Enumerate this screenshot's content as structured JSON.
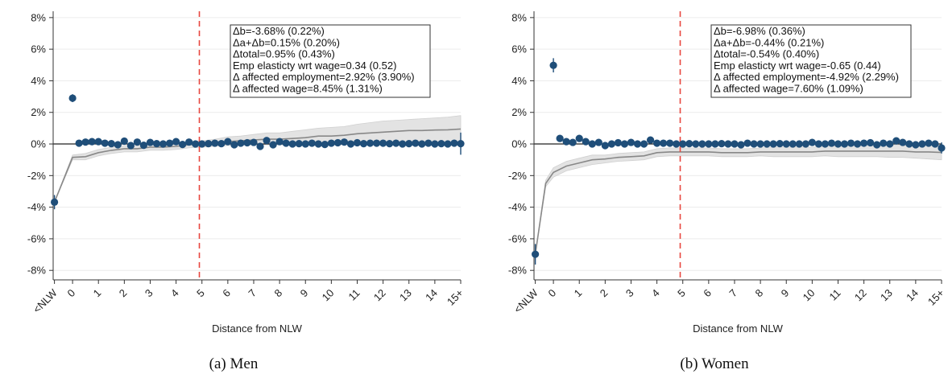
{
  "chart_data": [
    {
      "type": "scatter",
      "panel": "men",
      "caption": "(a) Men",
      "xlabel": "Distance from NLW",
      "x_tick_labels": [
        "<NLW",
        "0",
        "1",
        "2",
        "3",
        "4",
        "5",
        "6",
        "7",
        "8",
        "9",
        "10",
        "11",
        "12",
        "13",
        "14",
        "15+"
      ],
      "y_tick_labels": [
        "8%",
        "6%",
        "4%",
        "2%",
        "0%",
        "-2%",
        "-4%",
        "-6%",
        "-8%"
      ],
      "ylim": [
        -8.6,
        8.4
      ],
      "y_ticks": [
        8,
        6,
        4,
        2,
        0,
        -2,
        -4,
        -6,
        -8
      ],
      "vline_x": 4.9,
      "grid": true,
      "stats_box": [
        "Δb=-3.68% (0.22%)",
        "Δa+Δb=0.15% (0.20%)",
        "Δtotal=0.95% (0.43%)",
        "Emp elasticty wrt wage=0.34 (0.52)",
        "Δ affected employment=2.92% (3.90%)",
        "Δ affected wage=8.45% (1.31%)"
      ],
      "points": {
        "x": [
          -0.7,
          0,
          0.25,
          0.5,
          0.75,
          1.0,
          1.25,
          1.5,
          1.75,
          2.0,
          2.25,
          2.5,
          2.75,
          3.0,
          3.25,
          3.5,
          3.75,
          4.0,
          4.25,
          4.5,
          4.75,
          5.0,
          5.25,
          5.5,
          5.75,
          6.0,
          6.25,
          6.5,
          6.75,
          7.0,
          7.25,
          7.5,
          7.75,
          8.0,
          8.25,
          8.5,
          8.75,
          9.0,
          9.25,
          9.5,
          9.75,
          10.0,
          10.25,
          10.5,
          10.75,
          11.0,
          11.25,
          11.5,
          11.75,
          12.0,
          12.25,
          12.5,
          12.75,
          13.0,
          13.25,
          13.5,
          13.75,
          14.0,
          14.25,
          14.5,
          14.75,
          15.0
        ],
        "y": [
          -3.68,
          2.9,
          0.05,
          0.12,
          0.15,
          0.15,
          0.05,
          0.02,
          -0.05,
          0.18,
          -0.1,
          0.12,
          -0.08,
          0.1,
          0.02,
          0.0,
          0.05,
          0.15,
          -0.03,
          0.12,
          0.0,
          0.0,
          0.02,
          0.05,
          0.02,
          0.15,
          -0.05,
          0.05,
          0.08,
          0.1,
          -0.15,
          0.22,
          -0.05,
          0.15,
          0.05,
          0.0,
          0.02,
          0.0,
          0.05,
          0.0,
          -0.03,
          0.05,
          0.08,
          0.12,
          0.0,
          0.08,
          0.02,
          0.05,
          0.05,
          0.05,
          0.02,
          0.05,
          0.0,
          0.02,
          0.05,
          0.0,
          0.05,
          0.0,
          0.02,
          0.0,
          0.05,
          0.02
        ],
        "se": [
          0.45,
          0.25,
          0.08,
          0.08,
          0.08,
          0.08,
          0.08,
          0.08,
          0.08,
          0.08,
          0.08,
          0.08,
          0.08,
          0.08,
          0.08,
          0.08,
          0.08,
          0.08,
          0.08,
          0.08,
          0.08,
          0.08,
          0.08,
          0.08,
          0.08,
          0.08,
          0.08,
          0.08,
          0.08,
          0.08,
          0.08,
          0.08,
          0.08,
          0.08,
          0.08,
          0.08,
          0.08,
          0.08,
          0.08,
          0.08,
          0.08,
          0.08,
          0.08,
          0.08,
          0.08,
          0.08,
          0.08,
          0.08,
          0.08,
          0.08,
          0.08,
          0.08,
          0.08,
          0.08,
          0.08,
          0.08,
          0.08,
          0.08,
          0.08,
          0.08,
          0.08,
          0.7
        ]
      },
      "cumulative_line": {
        "x": [
          -0.7,
          0,
          0.5,
          1,
          1.5,
          2,
          2.5,
          3,
          3.5,
          4,
          4.5,
          5,
          5.5,
          6,
          6.5,
          7,
          7.5,
          8,
          8.5,
          9,
          9.5,
          10,
          10.5,
          11,
          11.5,
          12,
          12.5,
          13,
          13.5,
          14,
          14.5,
          15
        ],
        "y": [
          -3.68,
          -0.85,
          -0.8,
          -0.55,
          -0.4,
          -0.3,
          -0.3,
          -0.2,
          -0.2,
          -0.15,
          -0.05,
          0.0,
          0.05,
          0.15,
          0.2,
          0.25,
          0.3,
          0.3,
          0.35,
          0.4,
          0.5,
          0.5,
          0.55,
          0.65,
          0.7,
          0.75,
          0.8,
          0.85,
          0.85,
          0.88,
          0.9,
          0.95
        ],
        "lo": [
          -3.68,
          -1.0,
          -1.0,
          -0.75,
          -0.6,
          -0.5,
          -0.5,
          -0.4,
          -0.4,
          -0.35,
          -0.25,
          -0.2,
          -0.15,
          -0.1,
          -0.05,
          -0.05,
          -0.05,
          -0.05,
          -0.05,
          -0.05,
          -0.05,
          -0.05,
          -0.05,
          0.0,
          0.0,
          0.0,
          0.0,
          0.05,
          0.05,
          0.05,
          0.05,
          0.1
        ],
        "hi": [
          -3.68,
          -0.7,
          -0.6,
          -0.35,
          -0.2,
          -0.1,
          -0.1,
          0.0,
          0.0,
          0.05,
          0.15,
          0.2,
          0.3,
          0.45,
          0.5,
          0.6,
          0.7,
          0.7,
          0.8,
          0.9,
          1.0,
          1.05,
          1.1,
          1.25,
          1.35,
          1.45,
          1.5,
          1.55,
          1.6,
          1.65,
          1.7,
          1.8
        ]
      },
      "colors": {
        "points": "#1f4e79",
        "line": "#888888",
        "band": "#e3e3e3",
        "vline": "#e8473f"
      }
    },
    {
      "type": "scatter",
      "panel": "women",
      "caption": "(b) Women",
      "xlabel": "Distance from NLW",
      "x_tick_labels": [
        "<NLW",
        "0",
        "1",
        "2",
        "3",
        "4",
        "5",
        "6",
        "7",
        "8",
        "9",
        "10",
        "11",
        "12",
        "13",
        "14",
        "15+"
      ],
      "y_tick_labels": [
        "8%",
        "6%",
        "4%",
        "2%",
        "0%",
        "-2%",
        "-4%",
        "-6%",
        "-8%"
      ],
      "ylim": [
        -8.6,
        8.4
      ],
      "y_ticks": [
        8,
        6,
        4,
        2,
        0,
        -2,
        -4,
        -6,
        -8
      ],
      "vline_x": 4.9,
      "grid": true,
      "stats_box": [
        "Δb=-6.98% (0.36%)",
        "Δa+Δb=-0.44% (0.21%)",
        "Δtotal=-0.54% (0.40%)",
        "Emp elasticty wrt wage=-0.65 (0.44)",
        "Δ affected employment=-4.92% (2.29%)",
        "Δ affected wage=7.60% (1.09%)"
      ],
      "points": {
        "x": [
          -0.7,
          0,
          0.25,
          0.5,
          0.75,
          1.0,
          1.25,
          1.5,
          1.75,
          2.0,
          2.25,
          2.5,
          2.75,
          3.0,
          3.25,
          3.5,
          3.75,
          4.0,
          4.25,
          4.5,
          4.75,
          5.0,
          5.25,
          5.5,
          5.75,
          6.0,
          6.25,
          6.5,
          6.75,
          7.0,
          7.25,
          7.5,
          7.75,
          8.0,
          8.25,
          8.5,
          8.75,
          9.0,
          9.25,
          9.5,
          9.75,
          10.0,
          10.25,
          10.5,
          10.75,
          11.0,
          11.25,
          11.5,
          11.75,
          12.0,
          12.25,
          12.5,
          12.75,
          13.0,
          13.25,
          13.5,
          13.75,
          14.0,
          14.25,
          14.5,
          14.75,
          15.0
        ],
        "y": [
          -6.98,
          4.98,
          0.35,
          0.15,
          0.1,
          0.35,
          0.15,
          0.0,
          0.1,
          -0.1,
          0.0,
          0.08,
          0.0,
          0.1,
          0.0,
          0.0,
          0.25,
          0.05,
          0.05,
          0.05,
          0.0,
          0.0,
          0.02,
          0.0,
          0.0,
          0.0,
          0.0,
          0.02,
          0.0,
          0.0,
          -0.05,
          0.05,
          0.0,
          0.0,
          0.0,
          0.0,
          0.02,
          0.0,
          0.0,
          0.0,
          0.0,
          0.1,
          0.0,
          0.0,
          0.05,
          0.0,
          0.0,
          0.05,
          0.0,
          0.05,
          0.08,
          -0.05,
          0.05,
          0.0,
          0.2,
          0.1,
          0.0,
          -0.05,
          0.0,
          0.05,
          0.0,
          -0.25
        ],
        "se": [
          0.65,
          0.45,
          0.08,
          0.08,
          0.08,
          0.08,
          0.08,
          0.08,
          0.08,
          0.08,
          0.08,
          0.08,
          0.08,
          0.08,
          0.08,
          0.08,
          0.08,
          0.08,
          0.08,
          0.08,
          0.08,
          0.08,
          0.08,
          0.08,
          0.08,
          0.08,
          0.08,
          0.08,
          0.08,
          0.08,
          0.08,
          0.08,
          0.08,
          0.08,
          0.08,
          0.08,
          0.08,
          0.08,
          0.08,
          0.08,
          0.08,
          0.08,
          0.08,
          0.08,
          0.08,
          0.08,
          0.08,
          0.08,
          0.08,
          0.08,
          0.08,
          0.08,
          0.08,
          0.08,
          0.08,
          0.08,
          0.08,
          0.08,
          0.08,
          0.08,
          0.08,
          0.35
        ]
      },
      "cumulative_line": {
        "x": [
          -0.7,
          -0.3,
          0,
          0.5,
          1,
          1.5,
          2,
          2.5,
          3,
          3.5,
          4,
          4.5,
          5,
          5.5,
          6,
          6.5,
          7,
          7.5,
          8,
          8.5,
          9,
          9.5,
          10,
          10.5,
          11,
          11.5,
          12,
          12.5,
          13,
          13.5,
          14,
          14.5,
          15
        ],
        "y": [
          -6.98,
          -2.5,
          -1.8,
          -1.4,
          -1.2,
          -1.0,
          -0.95,
          -0.85,
          -0.8,
          -0.75,
          -0.55,
          -0.5,
          -0.5,
          -0.5,
          -0.5,
          -0.55,
          -0.55,
          -0.55,
          -0.5,
          -0.5,
          -0.5,
          -0.5,
          -0.5,
          -0.45,
          -0.45,
          -0.45,
          -0.45,
          -0.45,
          -0.45,
          -0.45,
          -0.5,
          -0.5,
          -0.54
        ],
        "lo": [
          -6.98,
          -2.7,
          -2.1,
          -1.7,
          -1.5,
          -1.3,
          -1.2,
          -1.1,
          -1.05,
          -1.0,
          -0.8,
          -0.75,
          -0.75,
          -0.75,
          -0.75,
          -0.8,
          -0.8,
          -0.8,
          -0.75,
          -0.8,
          -0.8,
          -0.8,
          -0.8,
          -0.75,
          -0.8,
          -0.8,
          -0.8,
          -0.8,
          -0.85,
          -0.85,
          -0.9,
          -0.95,
          -1.0
        ],
        "hi": [
          -6.98,
          -2.3,
          -1.5,
          -1.1,
          -0.9,
          -0.7,
          -0.7,
          -0.6,
          -0.55,
          -0.5,
          -0.3,
          -0.25,
          -0.25,
          -0.25,
          -0.25,
          -0.3,
          -0.3,
          -0.3,
          -0.25,
          -0.2,
          -0.2,
          -0.2,
          -0.2,
          -0.15,
          -0.1,
          -0.1,
          -0.1,
          -0.1,
          -0.05,
          -0.05,
          -0.1,
          -0.05,
          -0.08
        ]
      },
      "colors": {
        "points": "#1f4e79",
        "line": "#888888",
        "band": "#e3e3e3",
        "vline": "#e8473f"
      }
    }
  ]
}
